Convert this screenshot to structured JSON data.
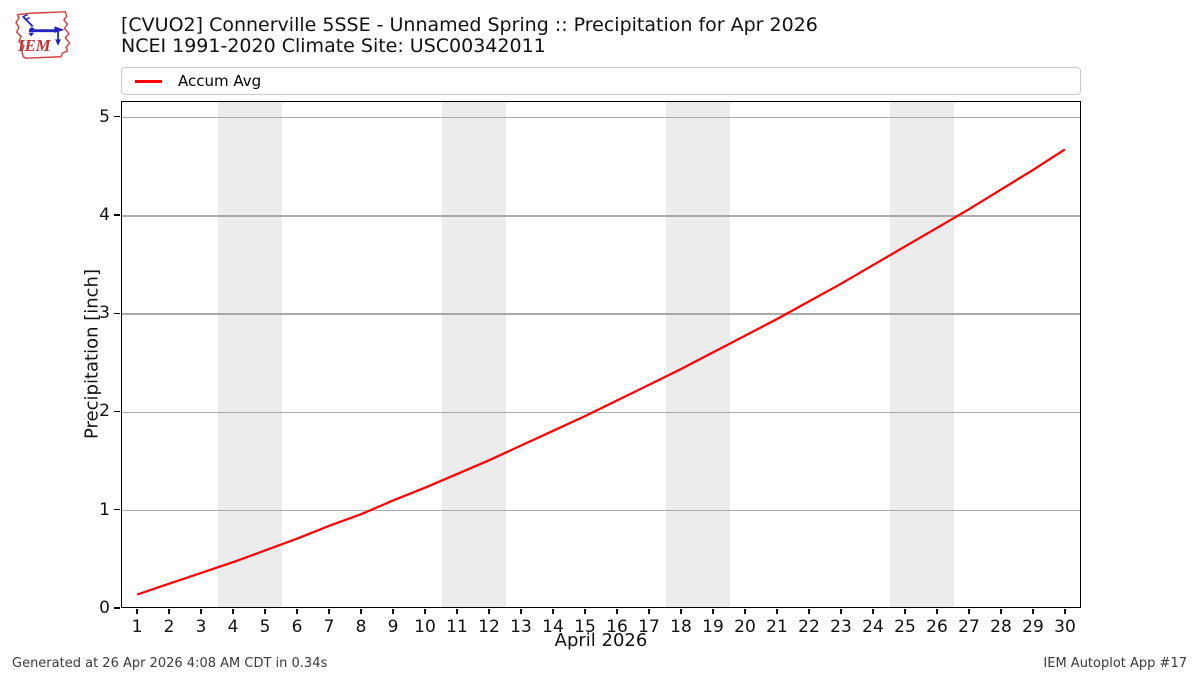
{
  "header": {
    "logo_text": "IEM",
    "title": "[CVUO2] Connerville 5SSE - Unnamed Spring :: Precipitation for Apr 2026",
    "subtitle": "NCEI 1991-2020 Climate Site: USC00342011"
  },
  "legend": {
    "label": "Accum Avg",
    "color": "#ff0000"
  },
  "chart_data": {
    "type": "line",
    "x": [
      1,
      2,
      3,
      4,
      5,
      6,
      7,
      8,
      9,
      10,
      11,
      12,
      13,
      14,
      15,
      16,
      17,
      18,
      19,
      20,
      21,
      22,
      23,
      24,
      25,
      26,
      27,
      28,
      29,
      30
    ],
    "series": [
      {
        "name": "Accum Avg",
        "color": "#ff0000",
        "values": [
          0.13,
          0.24,
          0.35,
          0.46,
          0.58,
          0.7,
          0.83,
          0.95,
          1.09,
          1.22,
          1.36,
          1.5,
          1.65,
          1.8,
          1.95,
          2.11,
          2.27,
          2.43,
          2.6,
          2.77,
          2.94,
          3.12,
          3.3,
          3.49,
          3.68,
          3.87,
          4.06,
          4.26,
          4.46,
          4.67
        ]
      }
    ],
    "xlabel": "April 2026",
    "ylabel": "Precipitation [inch]",
    "xlim": [
      0.5,
      30.5
    ],
    "ylim": [
      0,
      5.16
    ],
    "xticks": [
      1,
      2,
      3,
      4,
      5,
      6,
      7,
      8,
      9,
      10,
      11,
      12,
      13,
      14,
      15,
      16,
      17,
      18,
      19,
      20,
      21,
      22,
      23,
      24,
      25,
      26,
      27,
      28,
      29,
      30
    ],
    "yticks": [
      0,
      1,
      2,
      3,
      4,
      5
    ],
    "grid": true,
    "grid_color": "#aaaaaa",
    "weekend_bands": [
      [
        3.5,
        5.5
      ],
      [
        10.5,
        12.5
      ],
      [
        17.5,
        19.5
      ],
      [
        24.5,
        26.5
      ]
    ],
    "band_color": "#ececec",
    "legend_position": "top",
    "line_width": 2.25
  },
  "footer": {
    "generated": "Generated at 26 Apr 2026 4:08 AM CDT in 0.34s",
    "app": "IEM Autoplot App #17"
  }
}
